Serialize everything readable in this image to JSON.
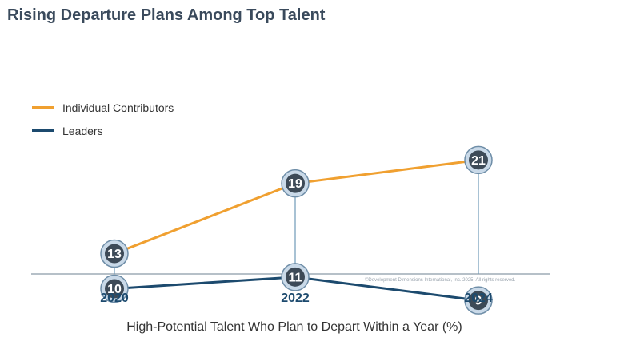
{
  "chart_data": {
    "type": "line",
    "title": "Rising Departure Plans Among Top Talent",
    "xlabel": "High-Potential Talent Who Plan to Depart Within a Year (%)",
    "ylabel": "",
    "categories": [
      "2020",
      "2022",
      "2024"
    ],
    "series": [
      {
        "name": "Individual Contributors",
        "values": [
          13,
          19,
          21
        ],
        "color": "#f0a030"
      },
      {
        "name": "Leaders",
        "values": [
          10,
          11,
          9
        ],
        "color": "#1c4a6e"
      }
    ],
    "ylim": [
      0,
      26
    ],
    "grid": false,
    "legend": "top-left"
  },
  "copyright": "©Development Dimensions International, Inc. 2025. All rights reserved.",
  "colors": {
    "marker_fill": "#3d4a57",
    "marker_ring": "#c9d9e8",
    "marker_ring_stroke": "#6f8ea8",
    "stem": "#6f9ab8",
    "baseline": "#8a9aa8",
    "category_label": "#1c4a6e"
  }
}
